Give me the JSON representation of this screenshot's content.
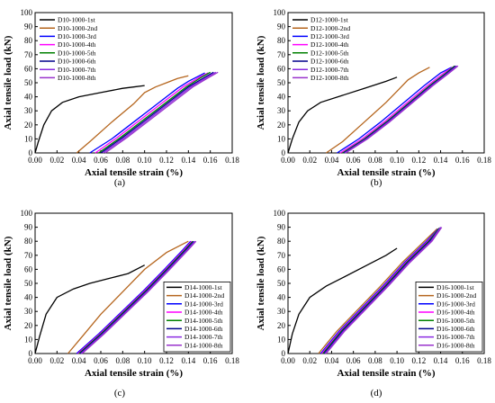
{
  "chart_data": [
    {
      "type": "line",
      "caption": "(a)",
      "xlabel": "Axial tensile strain (%)",
      "ylabel": "Axial tensile load (kN)",
      "xlim": [
        0,
        0.18
      ],
      "ylim": [
        0,
        100
      ],
      "xticks": [
        "0.00",
        "0.02",
        "0.04",
        "0.06",
        "0.08",
        "0.10",
        "0.12",
        "0.14",
        "0.16",
        "0.18"
      ],
      "yticks": [
        "0",
        "10",
        "20",
        "30",
        "40",
        "50",
        "60",
        "70",
        "80",
        "90",
        "100"
      ],
      "legend_position": "top-left",
      "series": [
        {
          "name": "D10-1000-1st",
          "color": "#000000",
          "x": [
            0,
            0.003,
            0.008,
            0.015,
            0.025,
            0.04,
            0.06,
            0.08,
            0.09,
            0.1
          ],
          "y": [
            0,
            8,
            20,
            30,
            36,
            40,
            43,
            46,
            47,
            48
          ]
        },
        {
          "name": "D10-1000-2nd",
          "color": "#b5651d",
          "x": [
            0.038,
            0.05,
            0.07,
            0.09,
            0.1,
            0.11,
            0.12,
            0.13,
            0.14
          ],
          "y": [
            0,
            8,
            22,
            35,
            43,
            47,
            50,
            53,
            55
          ]
        },
        {
          "name": "D10-1000-3rd",
          "color": "#0000ff",
          "x": [
            0.05,
            0.07,
            0.09,
            0.11,
            0.13,
            0.14,
            0.15,
            0.155
          ],
          "y": [
            0,
            10,
            22,
            34,
            46,
            51,
            55,
            57
          ]
        },
        {
          "name": "D10-1000-4th",
          "color": "#ff00ff",
          "x": [
            0.055,
            0.075,
            0.095,
            0.115,
            0.135,
            0.15,
            0.158
          ],
          "y": [
            0,
            11,
            23,
            35,
            47,
            54,
            57
          ]
        },
        {
          "name": "D10-1000-5th",
          "color": "#008000",
          "x": [
            0.058,
            0.078,
            0.098,
            0.118,
            0.138,
            0.152,
            0.16
          ],
          "y": [
            0,
            11,
            23,
            35,
            47,
            54,
            57.5
          ]
        },
        {
          "name": "D10-1000-6th",
          "color": "#00008b",
          "x": [
            0.06,
            0.08,
            0.1,
            0.12,
            0.14,
            0.155,
            0.163
          ],
          "y": [
            0,
            11,
            23,
            35,
            47,
            54,
            57.5
          ]
        },
        {
          "name": "D10-1000-7th",
          "color": "#8a2be2",
          "x": [
            0.062,
            0.082,
            0.102,
            0.122,
            0.142,
            0.157,
            0.165
          ],
          "y": [
            0,
            11,
            23,
            35,
            47,
            54,
            57.5
          ]
        },
        {
          "name": "D10-1000-8th",
          "color": "#9932cc",
          "x": [
            0.064,
            0.084,
            0.104,
            0.124,
            0.144,
            0.159,
            0.167
          ],
          "y": [
            0,
            11,
            23,
            35,
            47,
            54,
            57.5
          ]
        }
      ]
    },
    {
      "type": "line",
      "caption": "(b)",
      "xlabel": "Axial tensile strain (%)",
      "ylabel": "Axial tensile load (kN)",
      "xlim": [
        0,
        0.18
      ],
      "ylim": [
        0,
        100
      ],
      "xticks": [
        "0.00",
        "0.02",
        "0.04",
        "0.06",
        "0.08",
        "0.10",
        "0.12",
        "0.14",
        "0.16",
        "0.18"
      ],
      "yticks": [
        "0",
        "10",
        "20",
        "30",
        "40",
        "50",
        "60",
        "70",
        "80",
        "90",
        "100"
      ],
      "legend_position": "top-left",
      "series": [
        {
          "name": "D12-1000-1st",
          "color": "#000000",
          "x": [
            0,
            0.004,
            0.01,
            0.018,
            0.03,
            0.05,
            0.07,
            0.09,
            0.1
          ],
          "y": [
            0,
            10,
            22,
            30,
            36,
            41,
            46,
            51,
            54
          ]
        },
        {
          "name": "D12-1000-2nd",
          "color": "#b5651d",
          "x": [
            0.035,
            0.05,
            0.07,
            0.09,
            0.1,
            0.11,
            0.12,
            0.13
          ],
          "y": [
            0,
            8,
            22,
            36,
            44,
            52,
            57,
            61
          ]
        },
        {
          "name": "D12-1000-3rd",
          "color": "#0000ff",
          "x": [
            0.045,
            0.065,
            0.085,
            0.105,
            0.125,
            0.14,
            0.15
          ],
          "y": [
            0,
            10,
            22,
            35,
            48,
            57,
            61
          ]
        },
        {
          "name": "D12-1000-4th",
          "color": "#ff00ff",
          "x": [
            0.048,
            0.068,
            0.088,
            0.108,
            0.128,
            0.143,
            0.152
          ],
          "y": [
            0,
            10,
            22,
            35,
            48,
            57,
            61.5
          ]
        },
        {
          "name": "D12-1000-5th",
          "color": "#008000",
          "x": [
            0.05,
            0.07,
            0.09,
            0.11,
            0.13,
            0.145,
            0.153
          ],
          "y": [
            0,
            10,
            22,
            35,
            48,
            57,
            62
          ]
        },
        {
          "name": "D12-1000-6th",
          "color": "#00008b",
          "x": [
            0.051,
            0.071,
            0.091,
            0.111,
            0.131,
            0.146,
            0.154
          ],
          "y": [
            0,
            10,
            22,
            35,
            48,
            57,
            62
          ]
        },
        {
          "name": "D12-1000-7th",
          "color": "#8a2be2",
          "x": [
            0.052,
            0.072,
            0.092,
            0.112,
            0.132,
            0.147,
            0.155
          ],
          "y": [
            0,
            10,
            22,
            35,
            48,
            57,
            62
          ]
        },
        {
          "name": "D12-1000-8th",
          "color": "#9932cc",
          "x": [
            0.053,
            0.073,
            0.093,
            0.113,
            0.133,
            0.148,
            0.156
          ],
          "y": [
            0,
            10,
            22,
            35,
            48,
            57,
            62
          ]
        }
      ]
    },
    {
      "type": "line",
      "caption": "(c)",
      "xlabel": "Axial tensile strain (%)",
      "ylabel": "Axial tensile load (kN)",
      "xlim": [
        0,
        0.18
      ],
      "ylim": [
        0,
        100
      ],
      "xticks": [
        "0.00",
        "0.02",
        "0.04",
        "0.06",
        "0.08",
        "0.10",
        "0.12",
        "0.14",
        "0.16",
        "0.18"
      ],
      "yticks": [
        "0",
        "10",
        "20",
        "30",
        "40",
        "50",
        "60",
        "70",
        "80",
        "90",
        "100"
      ],
      "legend_position": "bottom-right",
      "series": [
        {
          "name": "D14-1000-1st",
          "color": "#000000",
          "x": [
            0,
            0.004,
            0.01,
            0.02,
            0.035,
            0.05,
            0.07,
            0.085,
            0.1
          ],
          "y": [
            0,
            12,
            28,
            40,
            46,
            50,
            54,
            57,
            63
          ]
        },
        {
          "name": "D14-1000-2nd",
          "color": "#b5651d",
          "x": [
            0.03,
            0.045,
            0.06,
            0.08,
            0.1,
            0.12,
            0.14
          ],
          "y": [
            0,
            14,
            28,
            44,
            60,
            72,
            80
          ]
        },
        {
          "name": "D14-1000-3rd",
          "color": "#0000ff",
          "x": [
            0.038,
            0.058,
            0.078,
            0.098,
            0.118,
            0.135,
            0.142
          ],
          "y": [
            0,
            14,
            29,
            44,
            60,
            74,
            80
          ]
        },
        {
          "name": "D14-1000-4th",
          "color": "#ff00ff",
          "x": [
            0.039,
            0.059,
            0.079,
            0.099,
            0.119,
            0.136,
            0.143
          ],
          "y": [
            0,
            14,
            29,
            44,
            60,
            74,
            80
          ]
        },
        {
          "name": "D14-1000-5th",
          "color": "#008000",
          "x": [
            0.04,
            0.06,
            0.08,
            0.1,
            0.12,
            0.137,
            0.144
          ],
          "y": [
            0,
            14,
            29,
            44,
            60,
            74,
            80
          ]
        },
        {
          "name": "D14-1000-6th",
          "color": "#00008b",
          "x": [
            0.041,
            0.061,
            0.081,
            0.101,
            0.121,
            0.138,
            0.145
          ],
          "y": [
            0,
            14,
            29,
            44,
            60,
            74,
            80
          ]
        },
        {
          "name": "D14-1000-7th",
          "color": "#8a2be2",
          "x": [
            0.042,
            0.062,
            0.082,
            0.102,
            0.122,
            0.139,
            0.146
          ],
          "y": [
            0,
            14,
            29,
            44,
            60,
            74,
            80
          ]
        },
        {
          "name": "D14-1000-8th",
          "color": "#9932cc",
          "x": [
            0.043,
            0.063,
            0.083,
            0.103,
            0.123,
            0.14,
            0.147
          ],
          "y": [
            0,
            14,
            29,
            44,
            60,
            74,
            80
          ]
        }
      ]
    },
    {
      "type": "line",
      "caption": "(d)",
      "xlabel": "Axial tensile strain (%)",
      "ylabel": "Axial tensile load (kN)",
      "xlim": [
        0,
        0.18
      ],
      "ylim": [
        0,
        100
      ],
      "xticks": [
        "0.00",
        "0.02",
        "0.04",
        "0.06",
        "0.08",
        "0.10",
        "0.12",
        "0.14",
        "0.16",
        "0.18"
      ],
      "yticks": [
        "0",
        "10",
        "20",
        "30",
        "40",
        "50",
        "60",
        "70",
        "80",
        "90",
        "100"
      ],
      "legend_position": "bottom-right",
      "series": [
        {
          "name": "D16-1000-1st",
          "color": "#000000",
          "x": [
            0,
            0.004,
            0.01,
            0.02,
            0.035,
            0.05,
            0.07,
            0.09,
            0.1
          ],
          "y": [
            0,
            14,
            28,
            40,
            48,
            54,
            62,
            70,
            75
          ]
        },
        {
          "name": "D16-1000-2nd",
          "color": "#b5651d",
          "x": [
            0.028,
            0.045,
            0.065,
            0.085,
            0.105,
            0.125,
            0.137
          ],
          "y": [
            0,
            16,
            32,
            48,
            65,
            80,
            89
          ]
        },
        {
          "name": "D16-1000-3rd",
          "color": "#0000ff",
          "x": [
            0.03,
            0.047,
            0.067,
            0.087,
            0.107,
            0.127,
            0.138
          ],
          "y": [
            0,
            16,
            32,
            48,
            65,
            80,
            89
          ]
        },
        {
          "name": "D16-1000-4th",
          "color": "#ff00ff",
          "x": [
            0.031,
            0.048,
            0.068,
            0.088,
            0.108,
            0.128,
            0.139
          ],
          "y": [
            0,
            16,
            32,
            48,
            65,
            80,
            89.5
          ]
        },
        {
          "name": "D16-1000-5th",
          "color": "#008000",
          "x": [
            0.032,
            0.049,
            0.069,
            0.089,
            0.109,
            0.129,
            0.139
          ],
          "y": [
            0,
            16,
            32,
            48,
            65,
            80,
            89.5
          ]
        },
        {
          "name": "D16-1000-6th",
          "color": "#00008b",
          "x": [
            0.033,
            0.05,
            0.07,
            0.09,
            0.11,
            0.13,
            0.14
          ],
          "y": [
            0,
            16,
            32,
            48,
            65,
            80,
            90
          ]
        },
        {
          "name": "D16-1000-7th",
          "color": "#8a2be2",
          "x": [
            0.034,
            0.051,
            0.071,
            0.091,
            0.111,
            0.131,
            0.14
          ],
          "y": [
            0,
            16,
            32,
            48,
            65,
            80,
            90
          ]
        },
        {
          "name": "D16-1000-8th",
          "color": "#9932cc",
          "x": [
            0.035,
            0.052,
            0.072,
            0.092,
            0.112,
            0.132,
            0.141
          ],
          "y": [
            0,
            16,
            32,
            48,
            65,
            80,
            90
          ]
        }
      ]
    }
  ]
}
